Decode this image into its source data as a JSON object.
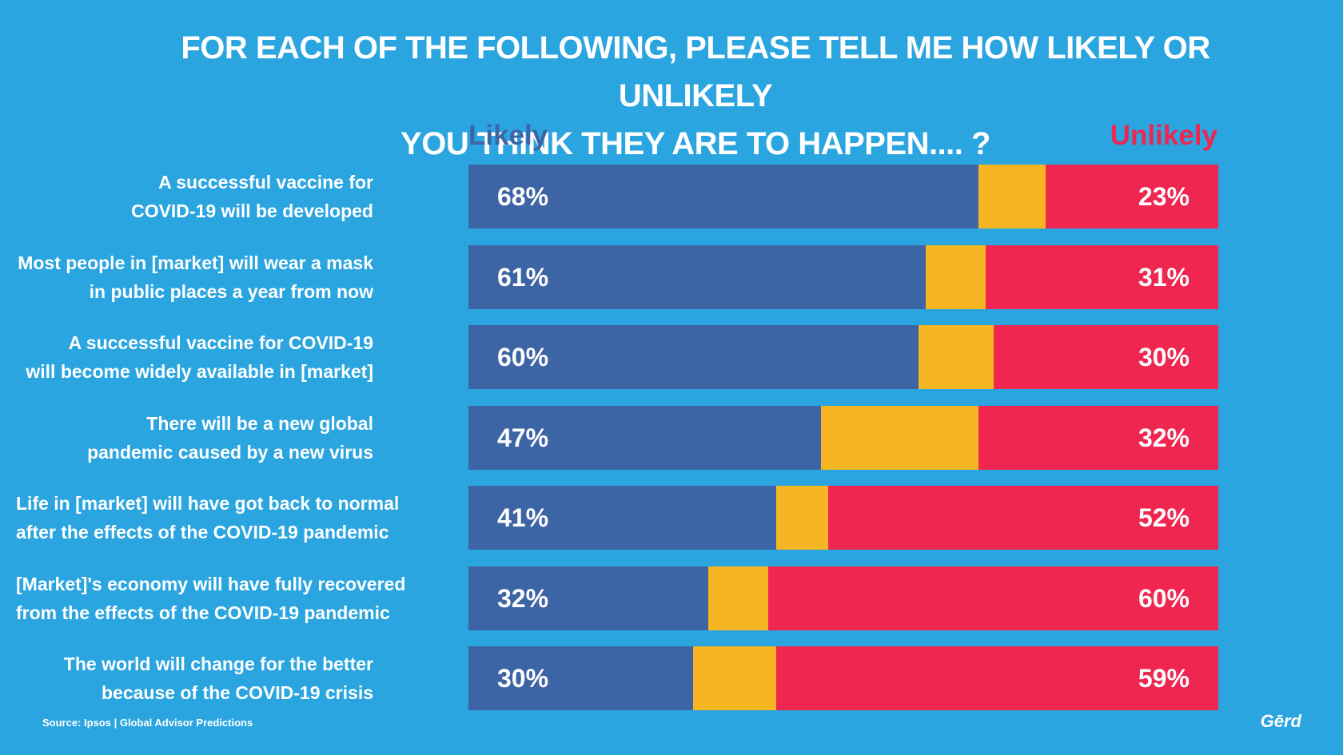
{
  "chart_data": {
    "type": "bar",
    "orientation": "horizontal",
    "stacked": true,
    "title_lines": [
      "FOR EACH OF THE FOLLOWING, PLEASE TELL ME HOW LIKELY OR UNLIKELY",
      "YOU THINK THEY ARE TO HAPPEN.... ?"
    ],
    "legend": {
      "likely": "Likely",
      "unlikely": "Unlikely",
      "placement": "top"
    },
    "categories": [
      [
        "A successful vaccine for",
        "COVID-19 will be developed"
      ],
      [
        "Most people in [market] will wear a mask",
        "in public places a year from now"
      ],
      [
        "A successful vaccine for COVID-19",
        "will become widely available in [market]"
      ],
      [
        "There will be a new global",
        "pandemic caused by a new virus"
      ],
      [
        "Life in [market] will have got back to normal",
        "after the effects of the COVID-19 pandemic"
      ],
      [
        "[Market]'s economy will have fully recovered",
        "from the effects of the COVID-19 pandemic"
      ],
      [
        "The world will change for the better",
        "because of the COVID-19 crisis"
      ]
    ],
    "likely": [
      68,
      61,
      60,
      47,
      41,
      32,
      30
    ],
    "unlikely": [
      23,
      31,
      30,
      32,
      52,
      60,
      59
    ],
    "likely_labels": [
      "68%",
      "61%",
      "60%",
      "47%",
      "41%",
      "32%",
      "30%"
    ],
    "unlikely_labels": [
      "23%",
      "31%",
      "30%",
      "32%",
      "52%",
      "60%",
      "59%"
    ],
    "xlim": [
      0,
      100
    ],
    "colors": {
      "likely": "#3d64a5",
      "neutral": "#f6b522",
      "unlikely": "#ee2650"
    }
  },
  "footer": {
    "source": "Source: Ipsos | Global Advisor Predictions",
    "logo": "Gērd"
  }
}
